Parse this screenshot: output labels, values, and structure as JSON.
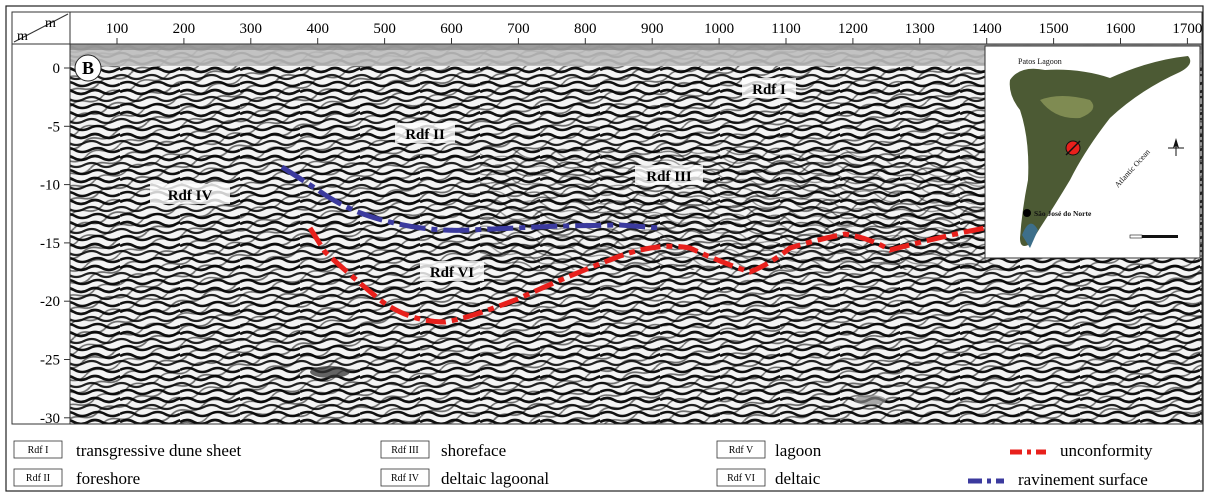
{
  "panel_label": "B",
  "axis": {
    "unit_top": "m",
    "unit_left": "m",
    "x_ticks": [
      "100",
      "200",
      "300",
      "400",
      "500",
      "600",
      "700",
      "800",
      "900",
      "1000",
      "1100",
      "1200",
      "1300",
      "1400",
      "1500",
      "1600",
      "1700"
    ],
    "y_ticks": [
      "0",
      "-5",
      "-10",
      "-15",
      "-20",
      "-25",
      "-30"
    ]
  },
  "units_on_section": [
    "Rdf I",
    "Rdf II",
    "Rdf III",
    "Rdf IV",
    "Rdf VI"
  ],
  "inset": {
    "title": "Patos Lagoon",
    "ocean": "Atlantic Ocean",
    "town": "São José do Norte"
  },
  "legend": {
    "items": [
      {
        "code": "Rdf I",
        "text": "transgressive dune sheet"
      },
      {
        "code": "Rdf III",
        "text": "shoreface"
      },
      {
        "code": "Rdf V",
        "text": "lagoon"
      },
      {
        "code": "Rdf II",
        "text": "foreshore"
      },
      {
        "code": "Rdf IV",
        "text": "deltaic lagoonal"
      },
      {
        "code": "Rdf VI",
        "text": "deltaic"
      }
    ],
    "lines": [
      {
        "label": "unconformity",
        "color": "#e8201c"
      },
      {
        "label": "ravinement surface",
        "color": "#3b3a9e"
      }
    ]
  },
  "colors": {
    "unconformity": "#e8201c",
    "ravinement": "#3b3a9e"
  }
}
